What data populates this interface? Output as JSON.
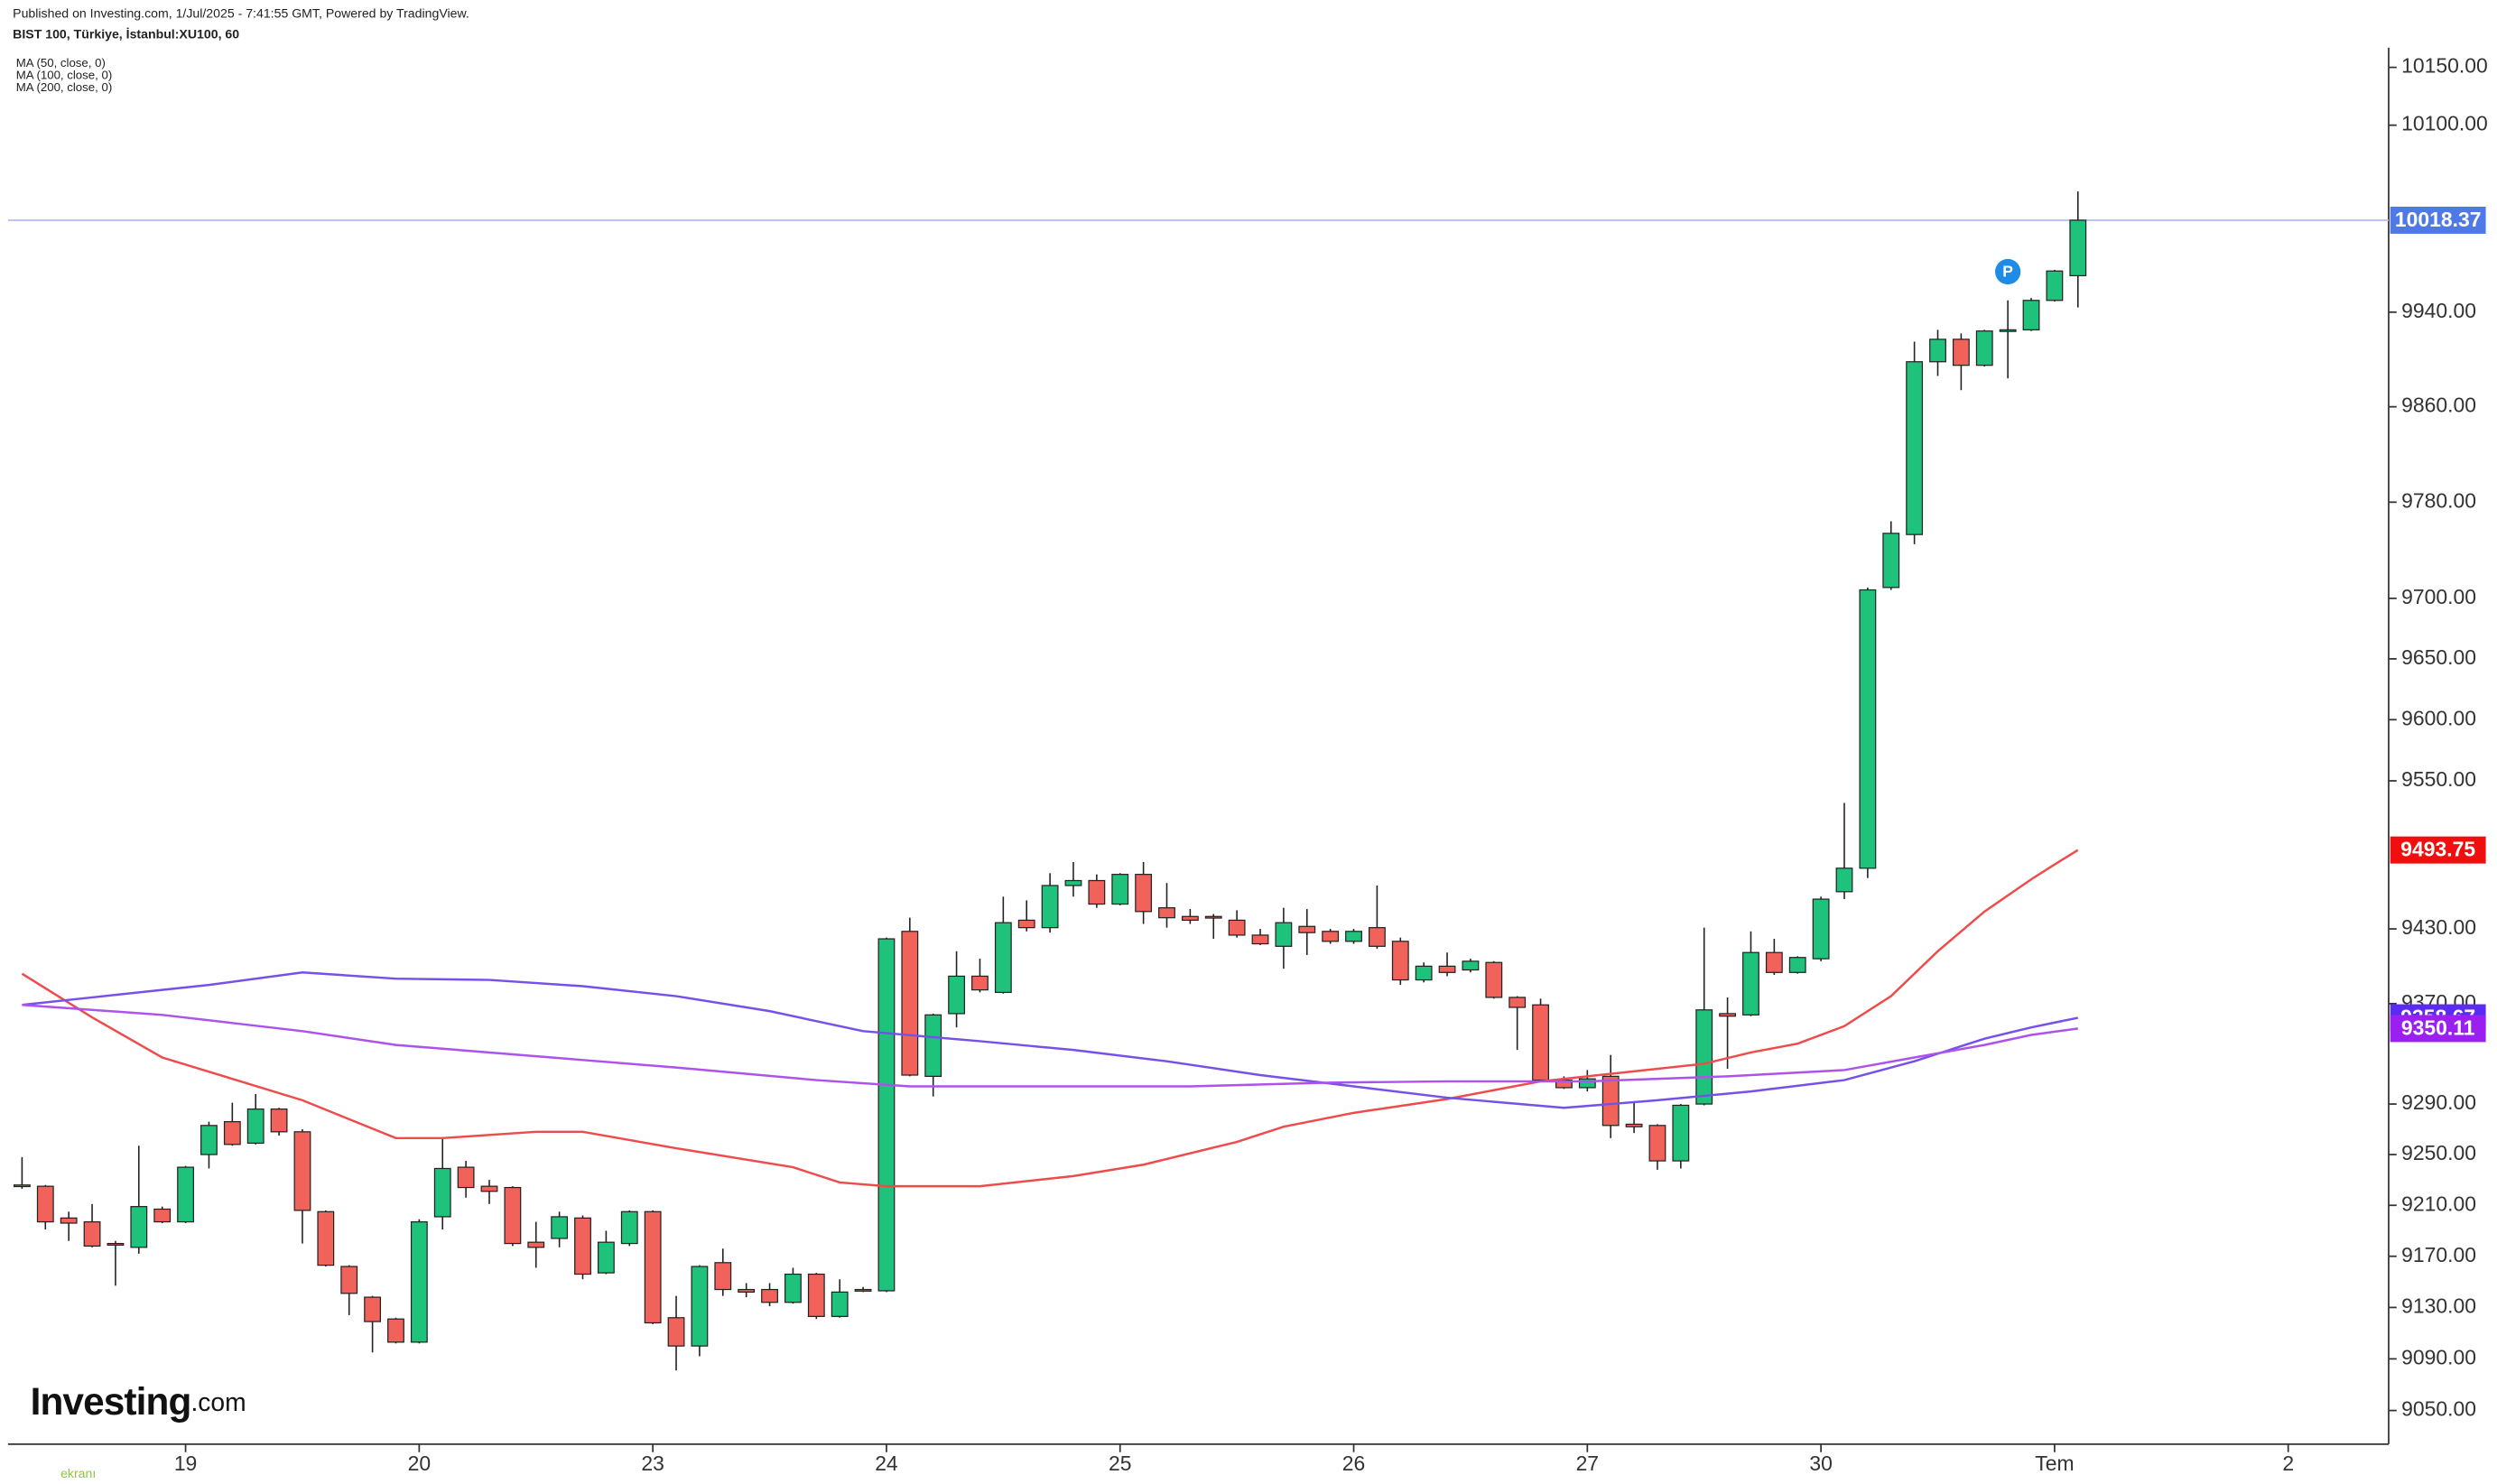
{
  "chart_data": {
    "type": "candlestick",
    "subtitle": "Published on Investing.com, 1/Jul/2025 - 7:41:55 GMT, Powered by TradingView.",
    "title": "BIST 100, Türkiye, İstanbul:XU100, 60",
    "logo": {
      "name": "Investing",
      "suffix": ".com"
    },
    "watermark": "ekranı",
    "log": true,
    "up_color": "#1fc27b",
    "down_color": "#f0625a",
    "outline_color": "#222222",
    "price_line_color": "#b4bbf0",
    "price_badge_color": "#4f79e6",
    "event_marker": {
      "label": "P",
      "x": 85,
      "color": "#1e8be6"
    },
    "x": [
      0,
      1,
      2,
      3,
      4,
      5,
      6,
      7,
      8,
      9,
      10,
      11,
      12,
      13,
      14,
      15,
      16,
      17,
      18,
      19,
      20,
      21,
      22,
      23,
      24,
      25,
      26,
      27,
      28,
      29,
      30,
      31,
      32,
      33,
      34,
      35,
      36,
      37,
      38,
      39,
      40,
      41,
      42,
      43,
      44,
      45,
      46,
      47,
      48,
      49,
      50,
      51,
      52,
      53,
      54,
      55,
      56,
      57,
      58,
      59,
      60,
      61,
      62,
      63,
      64,
      65,
      66,
      67,
      68,
      69,
      70,
      71,
      72,
      73,
      74,
      75,
      76,
      77,
      78,
      79,
      80,
      81,
      82,
      83,
      84,
      85,
      86,
      87,
      88
    ],
    "open": [
      9226,
      9225,
      9200,
      9197,
      9180,
      9177,
      9207,
      9197,
      9250,
      9276,
      9259,
      9286,
      9268,
      9205,
      9162,
      9138,
      9121,
      9103,
      9201,
      9240,
      9225,
      9224,
      9181,
      9184,
      9200,
      9157,
      9180,
      9205,
      9122,
      9100,
      9165,
      9144,
      9144,
      9134,
      9156,
      9123,
      9144,
      9143,
      9428,
      9312,
      9362,
      9392,
      9379,
      9437,
      9431,
      9465,
      9469,
      9450,
      9474,
      9447,
      9440,
      9440,
      9437,
      9425,
      9416,
      9432,
      9428,
      9420,
      9431,
      9420,
      9389,
      9400,
      9397,
      9403,
      9375,
      9369,
      9309,
      9303,
      9312,
      9274,
      9273,
      9245,
      9290,
      9362,
      9361,
      9411,
      9395,
      9406,
      9460,
      9479,
      9709,
      9753,
      9898,
      9917,
      9895,
      9924,
      9925,
      9950,
      9971
    ],
    "high": [
      9248,
      9226,
      9205,
      9211,
      9182,
      9257,
      9209,
      9241,
      9276,
      9291,
      9298,
      9287,
      9270,
      9206,
      9163,
      9139,
      9122,
      9199,
      9263,
      9245,
      9230,
      9225,
      9197,
      9205,
      9202,
      9190,
      9206,
      9206,
      9139,
      9163,
      9176,
      9149,
      9149,
      9161,
      9157,
      9152,
      9146,
      9423,
      9439,
      9362,
      9412,
      9406,
      9456,
      9453,
      9475,
      9484,
      9474,
      9475,
      9484,
      9467,
      9446,
      9442,
      9445,
      9430,
      9447,
      9446,
      9430,
      9430,
      9465,
      9423,
      9403,
      9411,
      9406,
      9404,
      9376,
      9374,
      9312,
      9317,
      9329,
      9292,
      9274,
      9290,
      9431,
      9375,
      9428,
      9422,
      9408,
      9456,
      9532,
      9709,
      9764,
      9915,
      9925,
      9922,
      9925,
      9950,
      9952,
      9976,
      10043
    ],
    "low": [
      9223,
      9191,
      9182,
      9177,
      9147,
      9172,
      9196,
      9196,
      9239,
      9257,
      9258,
      9265,
      9180,
      9162,
      9124,
      9095,
      9102,
      9102,
      9191,
      9216,
      9211,
      9178,
      9161,
      9177,
      9152,
      9156,
      9178,
      9117,
      9081,
      9092,
      9139,
      9138,
      9131,
      9133,
      9121,
      9122,
      9142,
      9142,
      9312,
      9296,
      9351,
      9379,
      9378,
      9428,
      9427,
      9456,
      9447,
      9449,
      9434,
      9431,
      9434,
      9422,
      9423,
      9417,
      9398,
      9409,
      9418,
      9418,
      9414,
      9385,
      9387,
      9392,
      9395,
      9374,
      9333,
      9308,
      9302,
      9300,
      9263,
      9267,
      9238,
      9239,
      9289,
      9318,
      9360,
      9393,
      9394,
      9404,
      9454,
      9471,
      9707,
      9745,
      9886,
      9874,
      9894,
      9884,
      9924,
      9949,
      9944
    ],
    "close": [
      9225,
      9197,
      9196,
      9178,
      9179,
      9209,
      9197,
      9240,
      9273,
      9258,
      9286,
      9268,
      9206,
      9163,
      9141,
      9119,
      9103,
      9197,
      9239,
      9224,
      9221,
      9180,
      9177,
      9201,
      9156,
      9181,
      9205,
      9118,
      9100,
      9162,
      9144,
      9142,
      9134,
      9156,
      9123,
      9142,
      9143,
      9422,
      9313,
      9361,
      9392,
      9381,
      9435,
      9431,
      9465,
      9469,
      9450,
      9474,
      9444,
      9439,
      9437,
      9439,
      9425,
      9418,
      9435,
      9427,
      9420,
      9428,
      9416,
      9389,
      9400,
      9395,
      9404,
      9375,
      9367,
      9309,
      9303,
      9310,
      9273,
      9272,
      9245,
      9289,
      9365,
      9360,
      9411,
      9395,
      9407,
      9454,
      9479,
      9707,
      9754,
      9898,
      9917,
      9895,
      9924,
      9925,
      9950,
      9975,
      10018.37
    ],
    "series": [
      {
        "name": "MA (50, close, 0)",
        "color": "#ef4b4b",
        "badge_color": "#f00e0e",
        "x": [
          0,
          3,
          6,
          9,
          12,
          16,
          18,
          22,
          24,
          28,
          33,
          35,
          37,
          41,
          45,
          48,
          52,
          54,
          57,
          61,
          65,
          68,
          72,
          74,
          76,
          78,
          80,
          82,
          84,
          86,
          87,
          88
        ],
        "values": [
          9394,
          9359,
          9327,
          9310,
          9293,
          9263,
          9263,
          9268,
          9268,
          9255,
          9240,
          9228,
          9225,
          9225,
          9233,
          9242,
          9260,
          9272,
          9283,
          9294,
          9308,
          9314,
          9322,
          9331,
          9338,
          9352,
          9376,
          9412,
          9444,
          9470,
          9482,
          9493.75
        ]
      },
      {
        "name": "MA (100, close, 0)",
        "color": "#7650ea",
        "badge_color": "#5a2cf2",
        "x": [
          0,
          3,
          6,
          8,
          12,
          16,
          20,
          24,
          28,
          32,
          36,
          41,
          45,
          49,
          53,
          57,
          61,
          66,
          70,
          74,
          78,
          81,
          84,
          86,
          88
        ],
        "values": [
          9369,
          9375,
          9381,
          9385,
          9395,
          9390,
          9389,
          9384,
          9376,
          9364,
          9348,
          9340,
          9333,
          9324,
          9313,
          9304,
          9295,
          9287,
          9293,
          9300,
          9309,
          9324,
          9342,
          9351,
          9358.67
        ]
      },
      {
        "name": "MA (200, close, 0)",
        "color": "#ad52ec",
        "badge_color": "#9b1ff0",
        "x": [
          0,
          6,
          12,
          16,
          22,
          28,
          34,
          38,
          43,
          50,
          56,
          61,
          67,
          73,
          78,
          81,
          84,
          86,
          88
        ],
        "values": [
          9369,
          9361,
          9348,
          9337,
          9328,
          9319,
          9309,
          9304,
          9304,
          9304,
          9307,
          9308,
          9308,
          9312,
          9317,
          9327,
          9337,
          9345,
          9350.11
        ]
      }
    ],
    "ylim": [
      9024,
      10167
    ],
    "yticks": [
      {
        "value": 10150,
        "label": "10150.00"
      },
      {
        "value": 10100,
        "label": "10100.00"
      },
      {
        "value": 9940,
        "label": "9940.00"
      },
      {
        "value": 9860,
        "label": "9860.00"
      },
      {
        "value": 9780,
        "label": "9780.00"
      },
      {
        "value": 9700,
        "label": "9700.00"
      },
      {
        "value": 9650,
        "label": "9650.00"
      },
      {
        "value": 9600,
        "label": "9600.00"
      },
      {
        "value": 9550,
        "label": "9550.00"
      },
      {
        "value": 9430,
        "label": "9430.00"
      },
      {
        "value": 9370,
        "label": "9370.00"
      },
      {
        "value": 9290,
        "label": "9290.00"
      },
      {
        "value": 9250,
        "label": "9250.00"
      },
      {
        "value": 9210,
        "label": "9210.00"
      },
      {
        "value": 9170,
        "label": "9170.00"
      },
      {
        "value": 9130,
        "label": "9130.00"
      },
      {
        "value": 9090,
        "label": "9090.00"
      },
      {
        "value": 9050,
        "label": "9050.00"
      }
    ],
    "xlim": [
      -0.6,
      101.3
    ],
    "xticks": [
      {
        "value": 7,
        "label": "19"
      },
      {
        "value": 17,
        "label": "20"
      },
      {
        "value": 27,
        "label": "23"
      },
      {
        "value": 37,
        "label": "24"
      },
      {
        "value": 47,
        "label": "25"
      },
      {
        "value": 57,
        "label": "26"
      },
      {
        "value": 67,
        "label": "27"
      },
      {
        "value": 77,
        "label": "30"
      },
      {
        "value": 87,
        "label": "Tem"
      },
      {
        "value": 97,
        "label": "2"
      }
    ]
  }
}
